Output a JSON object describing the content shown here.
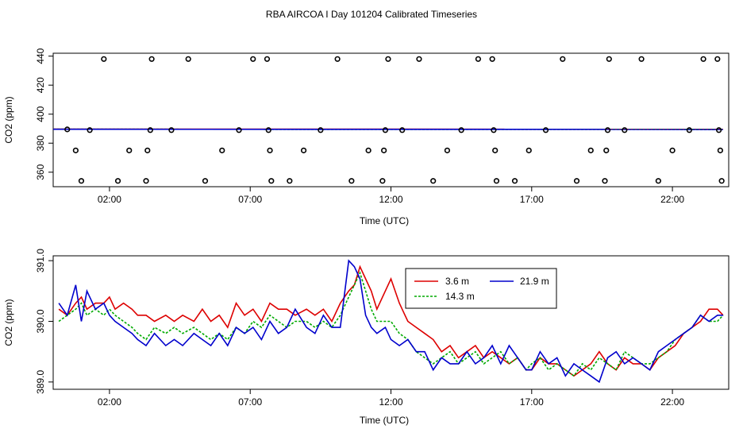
{
  "chart_data": [
    {
      "type": "scatter",
      "title": "RBA AIRCOA I  Day 101204  Calibrated Timeseries",
      "xlabel": "Time (UTC)",
      "ylabel": "CO2 (ppm)",
      "xlim": [
        0,
        24
      ],
      "ylim": [
        350,
        442
      ],
      "x_ticks": [
        2,
        7,
        12,
        17,
        22
      ],
      "x_tick_labels": [
        "02:00",
        "07:00",
        "12:00",
        "17:00",
        "22:00"
      ],
      "y_ticks": [
        360,
        380,
        400,
        420,
        440
      ],
      "y_tick_labels": [
        "360",
        "380",
        "400",
        "420",
        "440"
      ],
      "points": [
        [
          0.5,
          389.5
        ],
        [
          0.8,
          375
        ],
        [
          1.0,
          354
        ],
        [
          1.3,
          389
        ],
        [
          1.8,
          438
        ],
        [
          2.3,
          354
        ],
        [
          2.7,
          375
        ],
        [
          3.3,
          354
        ],
        [
          3.35,
          375
        ],
        [
          3.45,
          389
        ],
        [
          3.5,
          438
        ],
        [
          4.2,
          389
        ],
        [
          4.8,
          438
        ],
        [
          5.4,
          354
        ],
        [
          6.0,
          375
        ],
        [
          6.6,
          389
        ],
        [
          7.1,
          438
        ],
        [
          7.6,
          438
        ],
        [
          7.65,
          389
        ],
        [
          7.7,
          375
        ],
        [
          7.75,
          354
        ],
        [
          8.4,
          354
        ],
        [
          8.9,
          375
        ],
        [
          9.5,
          389
        ],
        [
          10.1,
          438
        ],
        [
          10.6,
          354
        ],
        [
          11.2,
          375
        ],
        [
          11.8,
          389
        ],
        [
          11.75,
          375
        ],
        [
          11.7,
          354
        ],
        [
          11.9,
          438
        ],
        [
          12.4,
          389
        ],
        [
          13.0,
          438
        ],
        [
          13.5,
          354
        ],
        [
          14.0,
          375
        ],
        [
          14.5,
          389
        ],
        [
          15.1,
          438
        ],
        [
          15.6,
          438
        ],
        [
          15.65,
          389
        ],
        [
          15.7,
          375
        ],
        [
          15.75,
          354
        ],
        [
          16.4,
          354
        ],
        [
          16.9,
          375
        ],
        [
          17.5,
          389
        ],
        [
          18.1,
          438
        ],
        [
          18.6,
          354
        ],
        [
          19.1,
          375
        ],
        [
          19.6,
          354
        ],
        [
          19.65,
          375
        ],
        [
          19.7,
          389
        ],
        [
          19.75,
          438
        ],
        [
          20.3,
          389
        ],
        [
          20.9,
          438
        ],
        [
          21.5,
          354
        ],
        [
          22.0,
          375
        ],
        [
          22.6,
          389
        ],
        [
          23.1,
          438
        ],
        [
          23.6,
          438
        ],
        [
          23.65,
          389
        ],
        [
          23.7,
          375
        ],
        [
          23.75,
          354
        ]
      ],
      "series": [
        {
          "name": "3.6 m",
          "color": "#dd0000",
          "dash": "",
          "x": [
            0,
            23.8
          ],
          "values": [
            389.7,
            389.6
          ]
        },
        {
          "name": "14.3 m",
          "color": "#00aa00",
          "dash": "3,2",
          "x": [
            0,
            23.8
          ],
          "values": [
            389.6,
            389.5
          ]
        },
        {
          "name": "21.9 m",
          "color": "#0000cc",
          "dash": "",
          "x": [
            0,
            23.8
          ],
          "values": [
            389.6,
            389.5
          ]
        }
      ]
    },
    {
      "type": "line",
      "xlabel": "Time (UTC)",
      "ylabel": "CO2 (ppm)",
      "xlim": [
        0,
        24
      ],
      "ylim": [
        388.88,
        391.08
      ],
      "x_ticks": [
        2,
        7,
        12,
        17,
        22
      ],
      "x_tick_labels": [
        "02:00",
        "07:00",
        "12:00",
        "17:00",
        "22:00"
      ],
      "y_ticks": [
        389.0,
        390.0,
        391.0
      ],
      "y_tick_labels": [
        "389.0",
        "390.0",
        "391.0"
      ],
      "legend_position": "top-center",
      "series": [
        {
          "name": "3.6 m",
          "color": "#dd0000",
          "dash": "",
          "x": [
            0.2,
            0.5,
            0.8,
            1.0,
            1.2,
            1.5,
            1.8,
            2.0,
            2.2,
            2.5,
            2.8,
            3.0,
            3.3,
            3.6,
            4.0,
            4.3,
            4.6,
            5.0,
            5.3,
            5.6,
            5.9,
            6.2,
            6.5,
            6.8,
            7.1,
            7.4,
            7.7,
            8.0,
            8.3,
            8.6,
            9.0,
            9.3,
            9.6,
            9.9,
            10.2,
            10.5,
            10.7,
            10.9,
            11.1,
            11.3,
            11.5,
            11.8,
            12.0,
            12.3,
            12.6,
            12.9,
            13.2,
            13.5,
            13.8,
            14.1,
            14.4,
            14.7,
            15.0,
            15.3,
            15.6,
            15.9,
            16.2,
            16.5,
            16.8,
            17.0,
            17.3,
            17.6,
            17.9,
            18.2,
            18.5,
            18.8,
            19.1,
            19.4,
            19.7,
            20.0,
            20.3,
            20.6,
            20.9,
            21.2,
            21.5,
            21.8,
            22.1,
            22.4,
            22.7,
            23.0,
            23.3,
            23.6,
            23.8
          ],
          "values": [
            390.2,
            390.1,
            390.3,
            390.4,
            390.2,
            390.3,
            390.3,
            390.4,
            390.2,
            390.3,
            390.2,
            390.1,
            390.1,
            390.0,
            390.1,
            390.0,
            390.1,
            390.0,
            390.2,
            390.0,
            390.1,
            389.9,
            390.3,
            390.1,
            390.2,
            390.0,
            390.3,
            390.2,
            390.2,
            390.1,
            390.2,
            390.1,
            390.2,
            390.0,
            390.3,
            390.5,
            390.6,
            390.9,
            390.7,
            390.5,
            390.2,
            390.5,
            390.7,
            390.3,
            390.0,
            389.9,
            389.8,
            389.7,
            389.5,
            389.6,
            389.4,
            389.5,
            389.6,
            389.4,
            389.5,
            389.4,
            389.3,
            389.4,
            389.2,
            389.2,
            389.4,
            389.3,
            389.3,
            389.2,
            389.1,
            389.2,
            389.3,
            389.5,
            389.3,
            389.2,
            389.4,
            389.3,
            389.3,
            389.2,
            389.4,
            389.5,
            389.6,
            389.8,
            389.9,
            390.0,
            390.2,
            390.2,
            390.1
          ]
        },
        {
          "name": "14.3 m",
          "color": "#00aa00",
          "dash": "3,2",
          "x": [
            0.2,
            0.5,
            0.8,
            1.0,
            1.2,
            1.5,
            1.8,
            2.0,
            2.2,
            2.5,
            2.8,
            3.0,
            3.3,
            3.6,
            4.0,
            4.3,
            4.6,
            5.0,
            5.3,
            5.6,
            5.9,
            6.2,
            6.5,
            6.8,
            7.1,
            7.4,
            7.7,
            8.0,
            8.3,
            8.6,
            9.0,
            9.3,
            9.6,
            9.9,
            10.2,
            10.5,
            10.7,
            10.9,
            11.1,
            11.3,
            11.5,
            11.8,
            12.0,
            12.3,
            12.6,
            12.9,
            13.2,
            13.5,
            13.8,
            14.1,
            14.4,
            14.7,
            15.0,
            15.3,
            15.6,
            15.9,
            16.2,
            16.5,
            16.8,
            17.0,
            17.3,
            17.6,
            17.9,
            18.2,
            18.5,
            18.8,
            19.1,
            19.4,
            19.7,
            20.0,
            20.3,
            20.6,
            20.9,
            21.2,
            21.5,
            21.8,
            22.1,
            22.4,
            22.7,
            23.0,
            23.3,
            23.6,
            23.8
          ],
          "values": [
            390.0,
            390.1,
            390.2,
            390.3,
            390.1,
            390.2,
            390.1,
            390.2,
            390.1,
            390.0,
            389.9,
            389.8,
            389.7,
            389.9,
            389.8,
            389.9,
            389.8,
            389.9,
            389.8,
            389.7,
            389.8,
            389.7,
            389.9,
            389.8,
            390.0,
            389.9,
            390.1,
            390.0,
            389.9,
            390.0,
            390.0,
            389.9,
            390.0,
            389.9,
            390.1,
            390.4,
            390.6,
            390.8,
            390.5,
            390.2,
            390.0,
            390.0,
            390.0,
            389.8,
            389.7,
            389.5,
            389.4,
            389.3,
            389.4,
            389.5,
            389.3,
            389.4,
            389.5,
            389.3,
            389.4,
            389.5,
            389.3,
            389.4,
            389.2,
            389.3,
            389.4,
            389.2,
            389.3,
            389.2,
            389.1,
            389.3,
            389.2,
            389.4,
            389.3,
            389.2,
            389.5,
            389.4,
            389.3,
            389.3,
            389.4,
            389.5,
            389.7,
            389.8,
            389.9,
            390.1,
            390.0,
            390.0,
            390.1
          ]
        },
        {
          "name": "21.9 m",
          "color": "#0000cc",
          "dash": "",
          "x": [
            0.2,
            0.5,
            0.8,
            1.0,
            1.2,
            1.5,
            1.8,
            2.0,
            2.2,
            2.5,
            2.8,
            3.0,
            3.3,
            3.6,
            4.0,
            4.3,
            4.6,
            5.0,
            5.3,
            5.6,
            5.9,
            6.2,
            6.5,
            6.8,
            7.1,
            7.4,
            7.7,
            8.0,
            8.3,
            8.6,
            9.0,
            9.3,
            9.6,
            9.9,
            10.2,
            10.5,
            10.7,
            10.9,
            11.1,
            11.3,
            11.5,
            11.8,
            12.0,
            12.3,
            12.6,
            12.9,
            13.2,
            13.5,
            13.8,
            14.1,
            14.4,
            14.7,
            15.0,
            15.3,
            15.6,
            15.9,
            16.2,
            16.5,
            16.8,
            17.0,
            17.3,
            17.6,
            17.9,
            18.2,
            18.5,
            18.8,
            19.1,
            19.4,
            19.7,
            20.0,
            20.3,
            20.6,
            20.9,
            21.2,
            21.5,
            21.8,
            22.1,
            22.4,
            22.7,
            23.0,
            23.3,
            23.6,
            23.8
          ],
          "values": [
            390.3,
            390.1,
            390.6,
            390.0,
            390.5,
            390.2,
            390.3,
            390.1,
            390.0,
            389.9,
            389.8,
            389.7,
            389.6,
            389.8,
            389.6,
            389.7,
            389.6,
            389.8,
            389.7,
            389.6,
            389.8,
            389.6,
            389.9,
            389.8,
            389.9,
            389.7,
            390.0,
            389.8,
            389.9,
            390.2,
            389.9,
            389.8,
            390.1,
            389.9,
            389.9,
            391.0,
            390.9,
            390.7,
            390.1,
            389.9,
            389.8,
            389.9,
            389.7,
            389.6,
            389.7,
            389.5,
            389.5,
            389.2,
            389.4,
            389.3,
            389.3,
            389.5,
            389.3,
            389.4,
            389.6,
            389.3,
            389.6,
            389.4,
            389.2,
            389.2,
            389.5,
            389.3,
            389.4,
            389.1,
            389.3,
            389.2,
            389.1,
            389.0,
            389.4,
            389.5,
            389.3,
            389.4,
            389.3,
            389.2,
            389.5,
            389.6,
            389.7,
            389.8,
            389.9,
            390.1,
            390.0,
            390.1,
            390.1
          ]
        }
      ]
    }
  ]
}
